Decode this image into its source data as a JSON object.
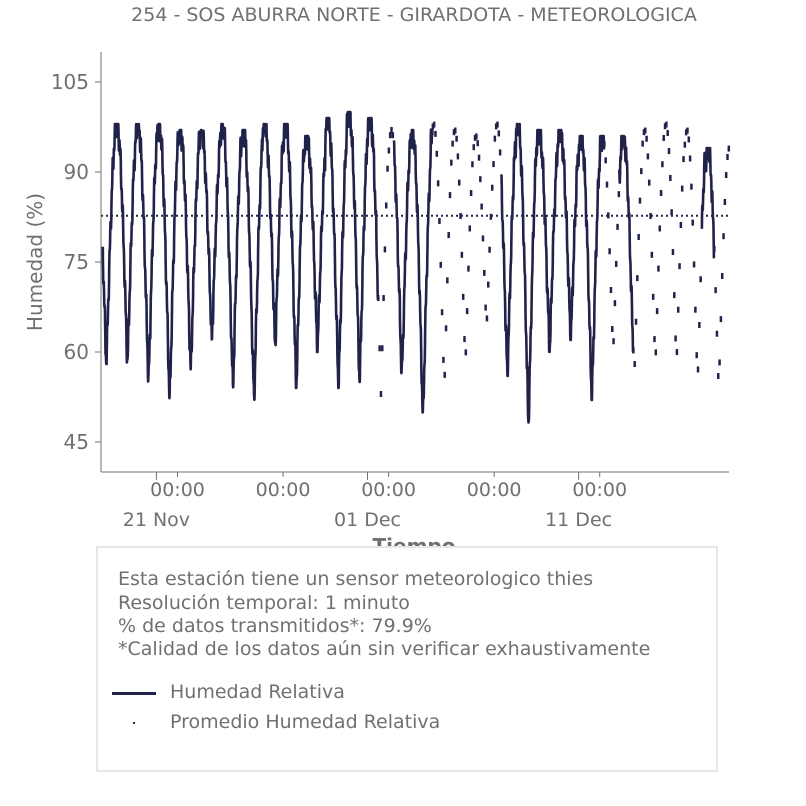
{
  "chart_data": {
    "type": "line",
    "title": "254 - SOS ABURRA NORTE - GIRARDOTA - METEOROLOGICA",
    "xlabel": "Tiempo",
    "ylabel": "Humedad (%)",
    "ylim": [
      40,
      110
    ],
    "yticks": [
      45,
      60,
      75,
      90,
      105
    ],
    "xlim": [
      "2023-11-18 09:00",
      "2023-12-18 03:00"
    ],
    "x_minor_ticks": [
      "00:00",
      "00:00",
      "00:00",
      "00:00",
      "00:00"
    ],
    "x_major_ticks": [
      "21 Nov",
      "01 Dec",
      "11 Dec"
    ],
    "grid": false,
    "colors": {
      "series": "#20224a",
      "text": "#707070",
      "axis": "#707070"
    },
    "series": [
      {
        "name": "Humedad Relativa",
        "style": "solid",
        "daily_max": [
          98,
          98,
          98,
          97,
          97,
          98,
          97,
          98,
          98,
          96,
          99,
          100,
          99,
          97,
          97,
          98,
          97,
          96,
          98,
          98,
          97,
          97,
          96,
          96,
          96,
          97,
          98,
          97,
          94
        ],
        "daily_min": [
          58,
          55,
          52,
          57,
          62,
          54,
          52,
          61,
          54,
          60,
          54,
          55,
          53,
          56,
          49,
          54,
          58,
          64,
          56,
          48,
          60,
          62,
          52,
          60,
          56,
          58,
          58,
          55,
          54
        ],
        "transmitted_fraction": 0.799
      },
      {
        "name": "Promedio Humedad Relativa",
        "style": "dotted",
        "value": 82.7
      }
    ]
  },
  "info": {
    "lines": [
      "Esta estación tiene un sensor meteorologico thies",
      "Resolución temporal: 1 minuto",
      "% de datos transmitidos*: 79.9%",
      "*Calidad de los datos aún sin verificar exhaustivamente"
    ]
  },
  "legend": {
    "series_label": "Humedad Relativa",
    "mean_label": "Promedio Humedad Relativa"
  }
}
